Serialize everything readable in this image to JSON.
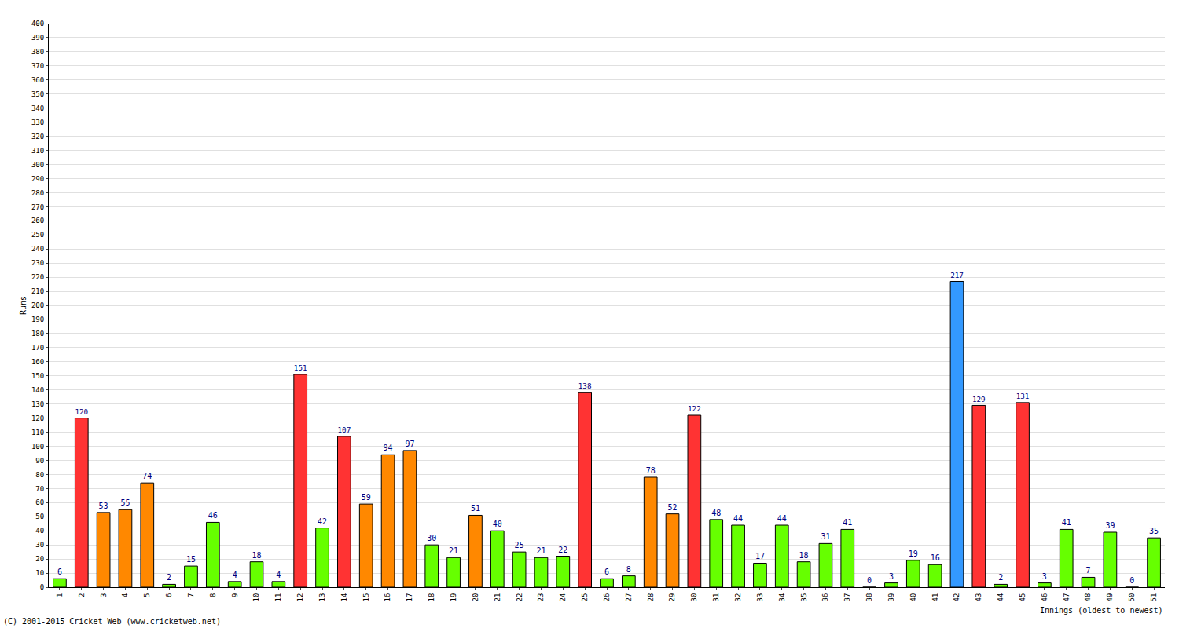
{
  "chart_data": {
    "type": "bar",
    "y_label": "Runs",
    "x_label": "Innings (oldest to newest)",
    "credit": "(C) 2001-2015 Cricket Web (www.cricketweb.net)",
    "categories": [
      "1",
      "2",
      "3",
      "4",
      "5",
      "6",
      "7",
      "8",
      "9",
      "10",
      "11",
      "12",
      "13",
      "14",
      "15",
      "16",
      "17",
      "18",
      "19",
      "20",
      "21",
      "22",
      "23",
      "24",
      "25",
      "26",
      "27",
      "28",
      "29",
      "30",
      "31",
      "32",
      "33",
      "34",
      "35",
      "36",
      "37",
      "38",
      "39",
      "40",
      "41",
      "42",
      "43",
      "44",
      "45",
      "46",
      "47",
      "48",
      "49",
      "50",
      "51"
    ],
    "values": [
      6,
      120,
      53,
      55,
      74,
      2,
      15,
      46,
      4,
      18,
      4,
      151,
      42,
      107,
      59,
      94,
      97,
      30,
      21,
      51,
      40,
      25,
      21,
      22,
      138,
      6,
      8,
      78,
      52,
      122,
      48,
      44,
      17,
      44,
      18,
      31,
      41,
      0,
      3,
      19,
      16,
      217,
      129,
      2,
      131,
      3,
      41,
      7,
      39,
      0,
      35
    ],
    "colors": [
      "#66ff00",
      "#ff3333",
      "#ff8800",
      "#ff8800",
      "#ff8800",
      "#66ff00",
      "#66ff00",
      "#66ff00",
      "#66ff00",
      "#66ff00",
      "#66ff00",
      "#ff3333",
      "#66ff00",
      "#ff3333",
      "#ff8800",
      "#ff8800",
      "#ff8800",
      "#66ff00",
      "#66ff00",
      "#ff8800",
      "#66ff00",
      "#66ff00",
      "#66ff00",
      "#66ff00",
      "#ff3333",
      "#66ff00",
      "#66ff00",
      "#ff8800",
      "#ff8800",
      "#ff3333",
      "#66ff00",
      "#66ff00",
      "#66ff00",
      "#66ff00",
      "#66ff00",
      "#66ff00",
      "#66ff00",
      "#66ff00",
      "#66ff00",
      "#66ff00",
      "#66ff00",
      "#3399ff",
      "#ff3333",
      "#66ff00",
      "#ff3333",
      "#66ff00",
      "#66ff00",
      "#66ff00",
      "#66ff00",
      "#66ff00",
      "#66ff00"
    ],
    "ylim": [
      0,
      400
    ],
    "yticks": [
      0,
      10,
      20,
      30,
      40,
      50,
      60,
      70,
      80,
      90,
      100,
      110,
      120,
      130,
      140,
      150,
      160,
      170,
      180,
      190,
      200,
      210,
      220,
      230,
      240,
      250,
      260,
      270,
      280,
      290,
      300,
      310,
      320,
      330,
      340,
      350,
      360,
      370,
      380,
      390,
      400
    ],
    "grid": true,
    "data_labels": true
  }
}
